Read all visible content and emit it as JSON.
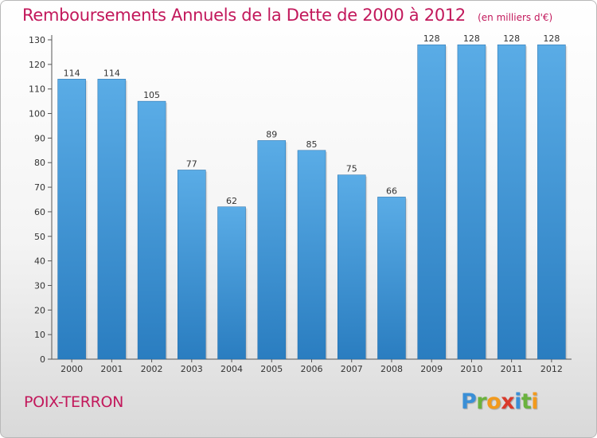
{
  "chart_data": {
    "type": "bar",
    "title": "Remboursements Annuels de la Dette de 2000 à 2012",
    "subtitle": "(en milliers d'€)",
    "categories": [
      "2000",
      "2001",
      "2002",
      "2003",
      "2004",
      "2005",
      "2006",
      "2007",
      "2008",
      "2009",
      "2010",
      "2011",
      "2012"
    ],
    "values": [
      114,
      114,
      105,
      77,
      62,
      89,
      85,
      75,
      66,
      128,
      128,
      128,
      128
    ],
    "data_labels": [
      "114",
      "114",
      "105",
      "77",
      "62",
      "89",
      "85",
      "75",
      "66",
      "128",
      "128",
      "128",
      "128"
    ],
    "xlabel": "",
    "ylabel": "",
    "ylim": [
      0,
      130
    ],
    "yticks": [
      0,
      10,
      20,
      30,
      40,
      50,
      60,
      70,
      80,
      90,
      100,
      110,
      120,
      130
    ],
    "grid": "none",
    "legend": "none",
    "bar_color_top": "#5aace6",
    "bar_color_bottom": "#2a7dc0"
  },
  "footer": {
    "city": "POIX-TERRON"
  },
  "logo": {
    "letters": [
      {
        "ch": "P",
        "color": "#3a8fd6"
      },
      {
        "ch": "r",
        "color": "#6ab23e"
      },
      {
        "ch": "o",
        "color": "#f29a1d"
      },
      {
        "ch": "x",
        "color": "#d93a2b"
      },
      {
        "ch": "i",
        "color": "#3a8fd6"
      },
      {
        "ch": "t",
        "color": "#6ab23e"
      },
      {
        "ch": "i",
        "color": "#f29a1d"
      }
    ]
  },
  "colors": {
    "title": "#c2185b",
    "axis": "#555555",
    "label": "#333333"
  }
}
